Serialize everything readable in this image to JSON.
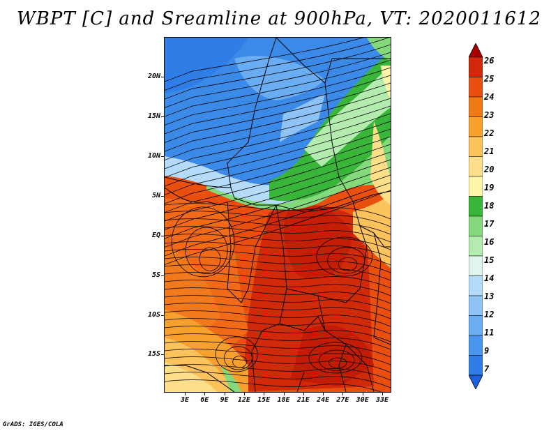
{
  "title": "WBPT [C] and Sreamline at 900hPa, VT: 2020011612",
  "credit": "GrADS: IGES/COLA",
  "map": {
    "lat_labels": [
      "20N",
      "15N",
      "10N",
      "5N",
      "EQ",
      "5S",
      "10S",
      "15S"
    ],
    "lon_labels": [
      "3E",
      "6E",
      "9E",
      "12E",
      "15E",
      "18E",
      "21E",
      "24E",
      "27E",
      "30E",
      "33E"
    ]
  },
  "colorbar": {
    "levels": [
      "7",
      "9",
      "11",
      "12",
      "13",
      "14",
      "15",
      "16",
      "17",
      "18",
      "19",
      "20",
      "21",
      "22",
      "23",
      "24",
      "25",
      "26"
    ],
    "colors": [
      "#1f5fdf",
      "#2f7de6",
      "#4a95ee",
      "#6badf2",
      "#8fc3f6",
      "#b4dbfa",
      "#e1f5f0",
      "#b4ecb0",
      "#84d97d",
      "#39b53a",
      "#fff5a8",
      "#fddf8a",
      "#fcc25c",
      "#f7a02e",
      "#f07a16",
      "#e95010",
      "#d2280a",
      "#a80000"
    ]
  }
}
